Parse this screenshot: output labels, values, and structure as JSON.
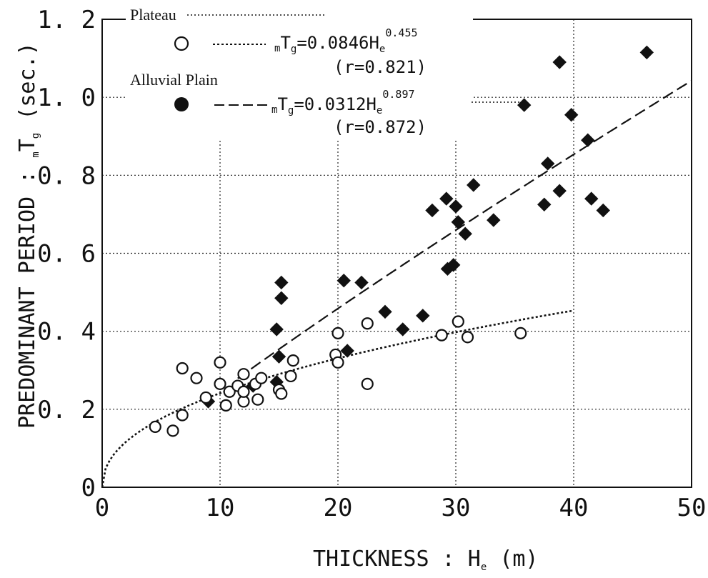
{
  "chart_data": {
    "type": "scatter",
    "xlabel_main": "THICKNESS : H",
    "xlabel_sub": "e",
    "xlabel_unit": "(m)",
    "ylabel_main": "PREDOMINANT PERIOD : ",
    "ylabel_pre": "m",
    "ylabel_T": "T",
    "ylabel_sub": "g",
    "ylabel_unit": " (sec.)",
    "xlim": [
      0,
      50
    ],
    "ylim": [
      0,
      1.2
    ],
    "x_ticks": [
      0,
      10,
      20,
      30,
      40,
      50
    ],
    "x_tick_labels": [
      "0",
      "10",
      "20",
      "30",
      "40",
      "50"
    ],
    "y_ticks": [
      0,
      0.2,
      0.4,
      0.6,
      0.8,
      1.0,
      1.2
    ],
    "y_tick_labels": [
      "0",
      "0. 2",
      "0. 4",
      "0. 6",
      "0. 8",
      "1. 0",
      "1. 2"
    ],
    "grid": true,
    "legend_position": "top-left",
    "series": [
      {
        "name": "Plateau",
        "marker": "open-circle",
        "color": "#111111",
        "equation": {
          "prefix": "m",
          "T": "T",
          "sub": "g",
          "body": "=0.0846H",
          "He_sub": "e",
          "exponent": "0.455",
          "r": "(r=0.821)"
        },
        "fit": {
          "a": 0.0846,
          "b": 0.455,
          "x_range": [
            0.3,
            40
          ],
          "style": "dotted"
        },
        "points": [
          [
            4.5,
            0.155
          ],
          [
            6,
            0.145
          ],
          [
            6.8,
            0.185
          ],
          [
            6.8,
            0.305
          ],
          [
            8,
            0.28
          ],
          [
            8.8,
            0.23
          ],
          [
            10,
            0.32
          ],
          [
            10,
            0.265
          ],
          [
            10.5,
            0.21
          ],
          [
            10.8,
            0.245
          ],
          [
            11.5,
            0.26
          ],
          [
            12,
            0.29
          ],
          [
            12,
            0.22
          ],
          [
            12,
            0.245
          ],
          [
            13,
            0.265
          ],
          [
            13.2,
            0.225
          ],
          [
            13.5,
            0.28
          ],
          [
            15,
            0.25
          ],
          [
            15.2,
            0.24
          ],
          [
            16,
            0.285
          ],
          [
            16.2,
            0.325
          ],
          [
            19.8,
            0.34
          ],
          [
            20,
            0.32
          ],
          [
            20,
            0.395
          ],
          [
            22.5,
            0.42
          ],
          [
            22.5,
            0.265
          ],
          [
            28.8,
            0.39
          ],
          [
            30.2,
            0.425
          ],
          [
            31,
            0.385
          ],
          [
            35.5,
            0.395
          ]
        ]
      },
      {
        "name": "Alluvial Plain",
        "marker": "filled-diamond",
        "color": "#111111",
        "equation": {
          "prefix": "m",
          "T": "T",
          "sub": "g",
          "body": "=0.0312H",
          "He_sub": "e",
          "exponent": "0.897",
          "r": "(r=0.872)"
        },
        "fit": {
          "a": 0.0312,
          "b": 0.897,
          "x_range": [
            11.5,
            50
          ],
          "style": "dashed"
        },
        "points": [
          [
            9,
            0.22
          ],
          [
            12.8,
            0.26
          ],
          [
            14.8,
            0.27
          ],
          [
            14.8,
            0.405
          ],
          [
            15,
            0.335
          ],
          [
            15.2,
            0.485
          ],
          [
            15.2,
            0.525
          ],
          [
            20.5,
            0.53
          ],
          [
            20.8,
            0.35
          ],
          [
            22,
            0.525
          ],
          [
            24,
            0.45
          ],
          [
            25.5,
            0.405
          ],
          [
            27.2,
            0.44
          ],
          [
            28,
            0.71
          ],
          [
            29.2,
            0.74
          ],
          [
            29.3,
            0.56
          ],
          [
            29.8,
            0.57
          ],
          [
            30,
            0.72
          ],
          [
            30.2,
            0.68
          ],
          [
            30.8,
            0.65
          ],
          [
            31.5,
            0.775
          ],
          [
            33.2,
            0.685
          ],
          [
            35.8,
            0.98
          ],
          [
            37.5,
            0.725
          ],
          [
            37.8,
            0.83
          ],
          [
            38.8,
            0.76
          ],
          [
            38.8,
            1.09
          ],
          [
            39.8,
            0.955
          ],
          [
            41.2,
            0.89
          ],
          [
            41.5,
            0.74
          ],
          [
            42.5,
            0.71
          ],
          [
            46.2,
            1.115
          ]
        ]
      }
    ]
  }
}
